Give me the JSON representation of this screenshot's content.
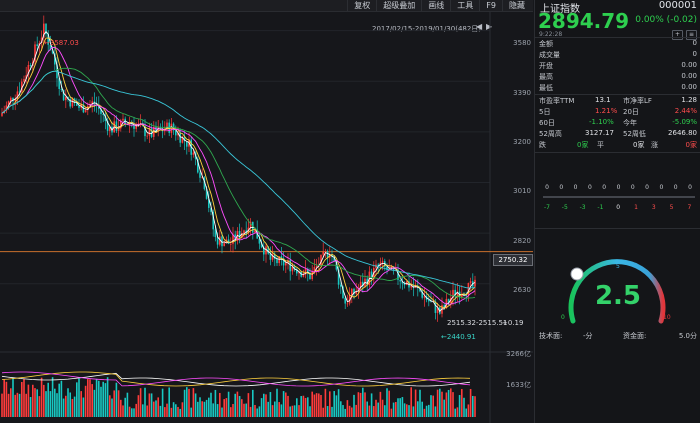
{
  "toolbar": [
    "复权",
    "超级叠加",
    "画线",
    "工具",
    "F9",
    "隐藏"
  ],
  "chart": {
    "range_label": "2017/02/15-2019/01/30(482日)",
    "range_prev": "◀",
    "range_next": "▶",
    "price_ticks": [
      "3580",
      "3390",
      "3200",
      "3010",
      "2820",
      "2630"
    ],
    "current_price_line": "2750.32",
    "high_marker": "←3587.03",
    "low_marker": "←2440.91",
    "annotation_1": "2515.32-2515.51",
    "annotation_2": "+0.19",
    "volume_ticks": [
      "3266亿",
      "1633亿"
    ]
  },
  "chart_data": {
    "type": "candlestick",
    "title": "",
    "x_range": [
      "2017/02/15",
      "2019/01/30"
    ],
    "ylim": [
      2400,
      3620
    ],
    "y_ticks": [
      3580,
      3390,
      3200,
      3010,
      2820,
      2630
    ],
    "reference_line": 2750.32,
    "high": 3587.03,
    "low": 2440.91,
    "moving_averages_colors": [
      "#ffffff",
      "#ffd23f",
      "#ff4dff",
      "#2fa84f",
      "#39c6d8"
    ],
    "volume_ticks": [
      "3266亿",
      "1633亿"
    ],
    "colors": {
      "up": "#ff3b3b",
      "down": "#18c8c2"
    }
  },
  "sidebar": {
    "index_name": "上证指数",
    "index_code": "000001",
    "price": "2894.79",
    "change": "0.00% (-0.02)",
    "time": "9:22:28",
    "action_1": "+",
    "action_2": "≡",
    "rows": [
      {
        "label": "金额",
        "value": "0"
      },
      {
        "label": "成交量",
        "value": "0"
      },
      {
        "label": "开盘",
        "value": "0.00"
      },
      {
        "label": "最高",
        "value": "0.00"
      },
      {
        "label": "最低",
        "value": "0.00"
      }
    ],
    "pe_label": "市盈率TTM",
    "pe_value": "13.1",
    "pb_label": "市净率LF",
    "pb_value": "1.28",
    "d5_label": "5日",
    "d5_value": "1.21%",
    "d20_label": "20日",
    "d20_value": "2.44%",
    "d60_label": "60日",
    "d60_value": "-1.10%",
    "ytd_label": "今年",
    "ytd_value": "-5.09%",
    "w52h_label": "52周高",
    "w52h_value": "3127.17",
    "w52l_label": "52周低",
    "w52l_value": "2646.80",
    "fall_label": "跌",
    "fall_value": "0家",
    "flat_label": "平",
    "flat_value": "0家",
    "rise_label": "涨",
    "rise_value": "0家",
    "dist_counts": [
      "0",
      "0",
      "0",
      "0",
      "0",
      "0",
      "0",
      "0",
      "0",
      "0",
      "0"
    ],
    "dist_labels": [
      "-7",
      "-5",
      "-3",
      "-1",
      "0",
      "1",
      "3",
      "5",
      "7"
    ],
    "gauge_value": "2.5",
    "gauge_min": "0",
    "gauge_mid": "5",
    "gauge_max": "10",
    "tech_label": "技术面:",
    "tech_value": "-分",
    "fund_label": "资金面:",
    "fund_value": "5.0分"
  }
}
